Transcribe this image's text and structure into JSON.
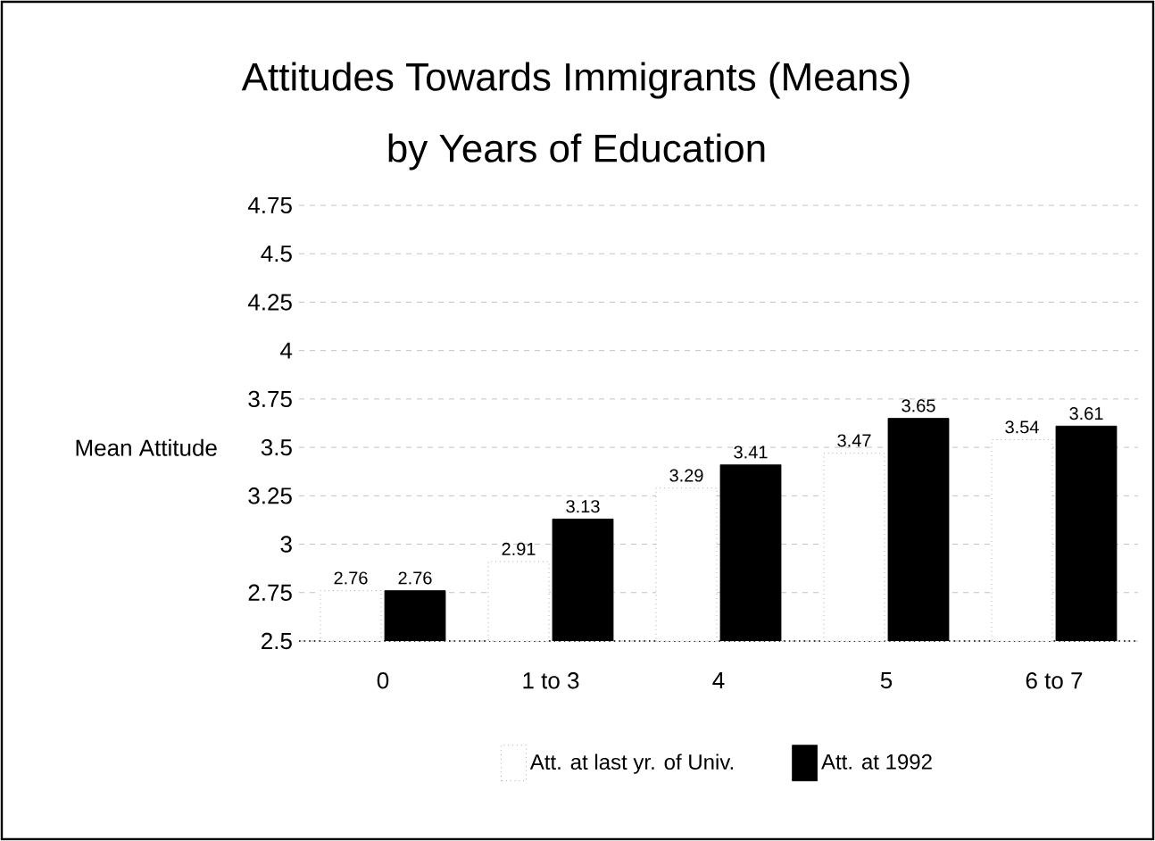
{
  "chart_data": {
    "type": "bar",
    "title": "Attitudes Towards Immigrants (Means)",
    "subtitle": "by Years of Education",
    "ylabel": "Mean Attitude",
    "categories": [
      "0",
      "1 to 3",
      "4",
      "5",
      "6 to 7"
    ],
    "series": [
      {
        "name": "Att. at last yr. of Univ.",
        "color": "#ffffff",
        "values": [
          2.76,
          2.91,
          3.29,
          3.47,
          3.54
        ]
      },
      {
        "name": "Att. at 1992",
        "color": "#000000",
        "values": [
          2.76,
          3.13,
          3.41,
          3.65,
          3.61
        ]
      }
    ],
    "ylim": [
      2.5,
      4.75
    ],
    "yticks": [
      2.5,
      2.75,
      3,
      3.25,
      3.5,
      3.75,
      4,
      4.25,
      4.5,
      4.75
    ],
    "grid": "y",
    "legend": "bottom",
    "data_labels": true
  }
}
